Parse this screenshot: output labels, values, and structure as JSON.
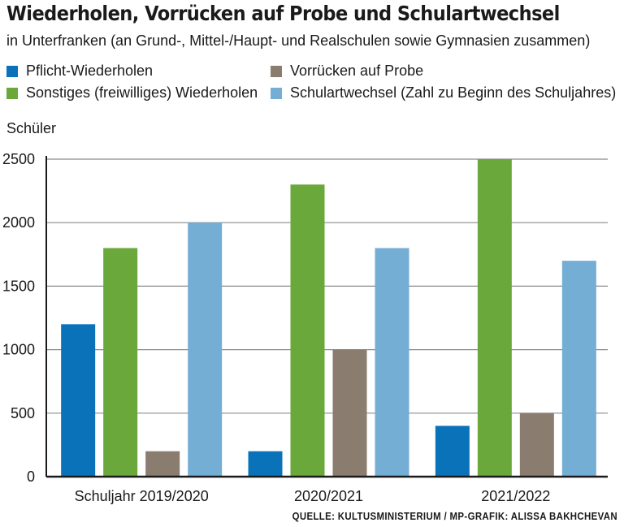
{
  "title": "Wiederholen, Vorrücken auf Probe und Schulartwechsel",
  "subtitle": "in Unterfranken (an Grund-, Mittel-/Haupt- und Realschulen sowie Gymnasien zusammen)",
  "source": "QUELLE: KULTUSMINISTERIUM / MP-GRAFIK: ALISSA BAKHCHEVAN",
  "chart_data": {
    "type": "bar",
    "title": "Wiederholen, Vorrücken auf Probe und Schulartwechsel",
    "subtitle": "in Unterfranken (an Grund-, Mittel-/Haupt- und Realschulen sowie Gymnasien zusammen)",
    "ylabel": "Schüler",
    "xlabel": "",
    "categories": [
      "Schuljahr 2019/2020",
      "2020/2021",
      "2021/2022"
    ],
    "ylim": [
      0,
      2500
    ],
    "yticks": [
      0,
      500,
      1000,
      1500,
      2000,
      2500
    ],
    "grid": true,
    "legend_position": "top",
    "series": [
      {
        "name": "Pflicht-Wiederholen",
        "color": "#0a72b9",
        "values": [
          1200,
          200,
          400
        ]
      },
      {
        "name": "Sonstiges (freiwilliges) Wiederholen",
        "color": "#6aa83c",
        "values": [
          1800,
          2300,
          2500
        ]
      },
      {
        "name": "Vorrücken auf Probe",
        "color": "#8a7d6f",
        "values": [
          200,
          1000,
          500
        ]
      },
      {
        "name": "Schulartwechsel (Zahl zu Beginn des Schuljahres)",
        "color": "#75aed5",
        "values": [
          2000,
          1800,
          1700
        ]
      }
    ]
  }
}
